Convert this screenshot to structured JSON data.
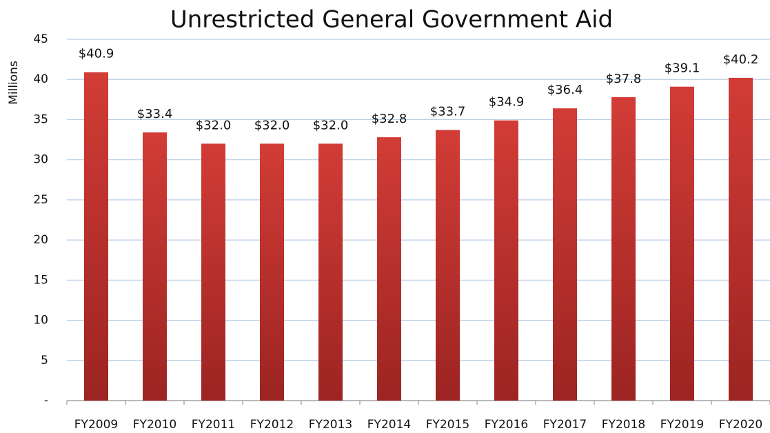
{
  "chart_data": {
    "type": "bar",
    "title": "Unrestricted General Government Aid",
    "y_label": "Millions",
    "categories": [
      "FY2009",
      "FY2010",
      "FY2011",
      "FY2012",
      "FY2013",
      "FY2014",
      "FY2015",
      "FY2016",
      "FY2017",
      "FY2018",
      "FY2019",
      "FY2020"
    ],
    "values": [
      40.9,
      33.4,
      32.0,
      32.0,
      32.0,
      32.8,
      33.7,
      34.9,
      36.4,
      37.8,
      39.1,
      40.2
    ],
    "value_labels": [
      "$40.9",
      "$33.4",
      "$32.0",
      "$32.0",
      "$32.0",
      "$32.8",
      "$33.7",
      "$34.9",
      "$36.4",
      "$37.8",
      "$39.1",
      "$40.2"
    ],
    "color": "#d23c36",
    "ylim": [
      0,
      45
    ],
    "yticks": [
      {
        "value": 0,
        "label": "-"
      },
      5,
      10,
      15,
      20,
      25,
      30,
      35,
      40,
      45
    ],
    "grid": true
  }
}
